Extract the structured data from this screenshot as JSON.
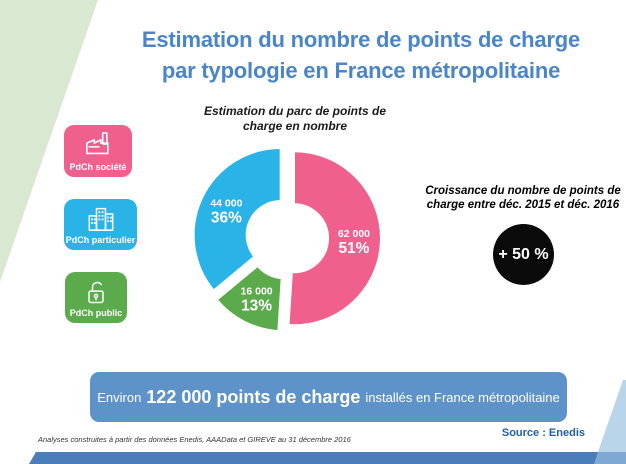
{
  "header": {
    "title_line1": "Estimation du nombre de points de charge",
    "title_line2": "par typologie en France métropolitaine"
  },
  "legend": {
    "items": [
      {
        "label": "PdCh société",
        "icon": "factory-icon",
        "color": "#f0608c"
      },
      {
        "label": "PdCh particulier",
        "icon": "buildings-icon",
        "color": "#2ab3e6"
      },
      {
        "label": "PdCh public",
        "icon": "open-padlock-icon",
        "color": "#5baa4c"
      }
    ]
  },
  "chart_data": {
    "type": "pie",
    "donut": true,
    "title": "Estimation du parc de points de charge en nombre",
    "title_line1": "Estimation du parc de points de",
    "title_line2": "charge en nombre",
    "start_angle_deg": 0,
    "direction": "clockwise",
    "exploded": true,
    "slices": [
      {
        "label": "PdCh société",
        "value": 62000,
        "value_label": "62 000",
        "pct": 51,
        "pct_label": "51%",
        "color": "#f0608c"
      },
      {
        "label": "PdCh public",
        "value": 16000,
        "value_label": "16 000",
        "pct": 13,
        "pct_label": "13%",
        "color": "#5baa4c"
      },
      {
        "label": "PdCh particulier",
        "value": 44000,
        "value_label": "44 000",
        "pct": 36,
        "pct_label": "36%",
        "color": "#2ab3e6"
      }
    ],
    "total": 122000
  },
  "growth": {
    "caption_line1": "Croissance du nombre de points de",
    "caption_line2": "charge entre déc. 2015 et déc. 2016",
    "badge": "+ 50 %",
    "badge_color": "#0a0a0a"
  },
  "banner": {
    "prefix": "Environ",
    "highlight": "122 000 points de charge",
    "suffix": "installés en France métropolitaine",
    "color": "#5e93c9"
  },
  "footer": {
    "note": "Analyses construites à partir des données Enedis, AAAData et GIREVE  au 31 décembre 2016",
    "source": "Source : Enedis"
  }
}
